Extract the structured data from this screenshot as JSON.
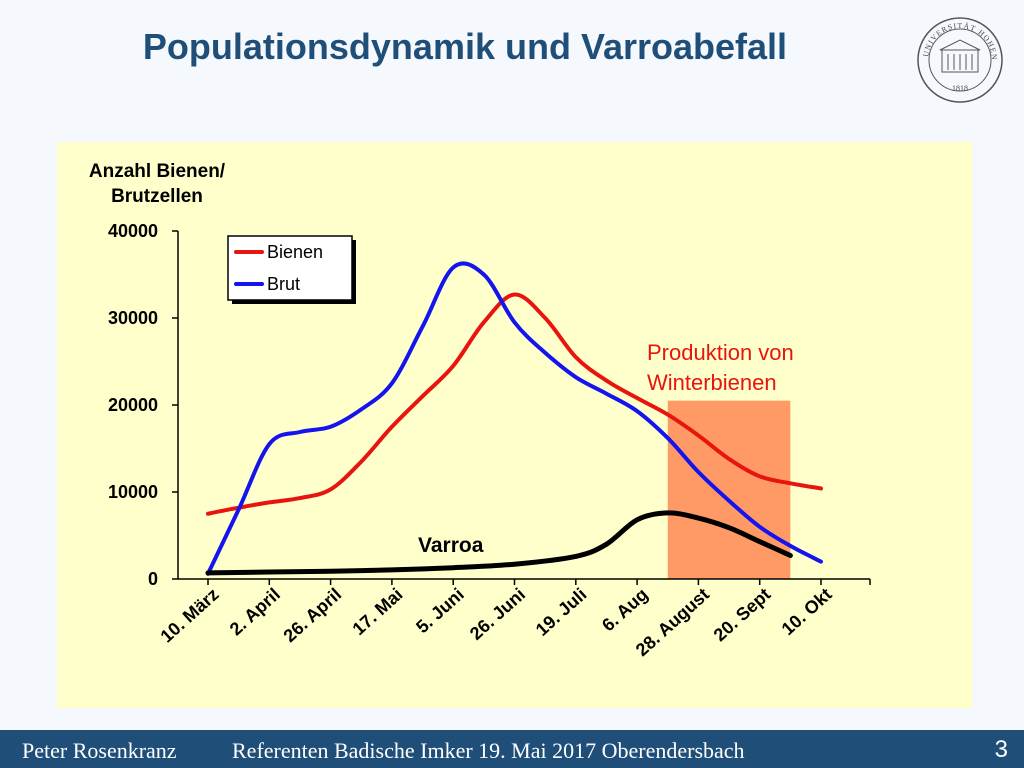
{
  "slide": {
    "title": "Populationsdynamik und Varroabefall",
    "seal_text": "UNIVERSITÄT HOHENHEIM",
    "seal_year": "1818"
  },
  "footer": {
    "author": "Peter Rosenkranz",
    "event": "Referenten Badische Imker 19. Mai 2017  Oberendersbach",
    "page": "3"
  },
  "chart_data": {
    "type": "line",
    "ylabel": "Anzahl Bienen/ Brutzellen",
    "ylabel_lines": [
      "Anzahl Bienen/",
      "Brutzellen"
    ],
    "ylim": [
      0,
      40000
    ],
    "yticks": [
      0,
      10000,
      20000,
      30000,
      40000
    ],
    "categories": [
      "10. März",
      "2. April",
      "26. April",
      "17. Mai",
      "5. Juni",
      "26. Juni",
      "19. Juli",
      "6. Aug",
      "28. August",
      "20. Sept",
      "10. Okt"
    ],
    "legend_position": "top-left",
    "series": [
      {
        "name": "Bienen",
        "color": "#e8150f",
        "x": [
          0,
          0.5,
          1,
          1.5,
          2,
          2.5,
          3,
          3.5,
          4,
          4.5,
          5,
          5.5,
          6,
          6.5,
          7,
          7.5,
          8,
          8.5,
          9,
          9.5,
          10
        ],
        "values": [
          7500,
          8200,
          8800,
          9300,
          10300,
          13500,
          17500,
          21000,
          24500,
          29500,
          32700,
          30000,
          25500,
          22800,
          20800,
          18900,
          16500,
          13800,
          11800,
          11000,
          10400
        ]
      },
      {
        "name": "Brut",
        "color": "#1414ee",
        "x": [
          0,
          0.5,
          1,
          1.5,
          2,
          2.5,
          3,
          3.5,
          4,
          4.5,
          5,
          5.5,
          6,
          6.5,
          7,
          7.5,
          8,
          8.5,
          9,
          9.5,
          10
        ],
        "values": [
          600,
          8000,
          15500,
          16900,
          17500,
          19500,
          22500,
          29000,
          35800,
          35000,
          29500,
          26000,
          23200,
          21300,
          19300,
          16200,
          12300,
          9000,
          6000,
          3800,
          2000
        ]
      },
      {
        "name": "Varroa",
        "color": "#000000",
        "x": [
          0,
          1,
          2,
          3,
          4,
          5,
          6,
          6.5,
          7,
          7.5,
          8,
          8.5,
          9,
          9.5
        ],
        "values": [
          700,
          800,
          900,
          1050,
          1300,
          1700,
          2600,
          4000,
          6800,
          7600,
          7000,
          5900,
          4300,
          2700
        ]
      }
    ],
    "annotations": [
      {
        "text": "Varroa",
        "series": "Varroa"
      },
      {
        "text_lines": [
          "Produktion von",
          "Winterbienen"
        ],
        "color": "#e8150f"
      }
    ],
    "highlight": {
      "label": "Produktion von Winterbienen",
      "x_from": 7.5,
      "x_to": 9.5,
      "y_to": 20500,
      "color": "#ff9a66"
    }
  }
}
